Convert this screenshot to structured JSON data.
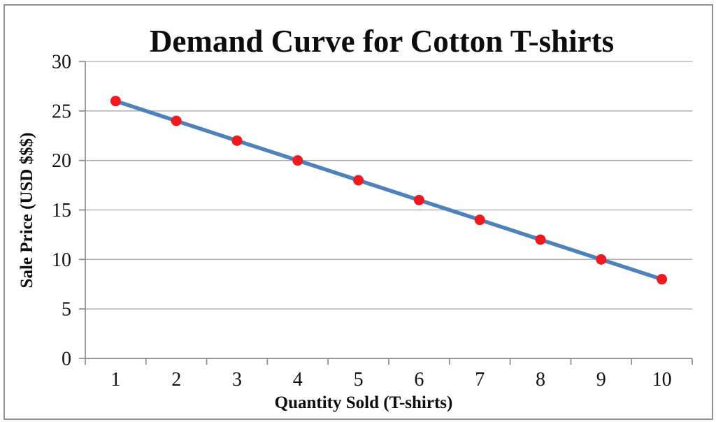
{
  "figure": {
    "background": "#FFFFFF",
    "border_color": "#8F9194"
  },
  "chart_data": {
    "type": "line",
    "title": "Demand Curve for Cotton T-shirts",
    "xlabel": "Quantity Sold (T-shirts)",
    "ylabel": "Sale Price (USD $$$)",
    "categories": [
      "1",
      "2",
      "3",
      "4",
      "5",
      "6",
      "7",
      "8",
      "9",
      "10"
    ],
    "series": [
      {
        "values": [
          26,
          24,
          22,
          20,
          18,
          16,
          14,
          12,
          10,
          8
        ]
      }
    ],
    "ylim": [
      0,
      30
    ],
    "yticks": [
      0,
      5,
      10,
      15,
      20,
      25,
      30
    ],
    "grid": "horizontal",
    "legend_position": "none",
    "marker_shape": "circle",
    "colors": {
      "line": "#4F81BD",
      "marker": "#F0191F",
      "gridline": "#A6A6A6",
      "axis": "#8A8A8A",
      "text": "#0D0D0D"
    }
  }
}
